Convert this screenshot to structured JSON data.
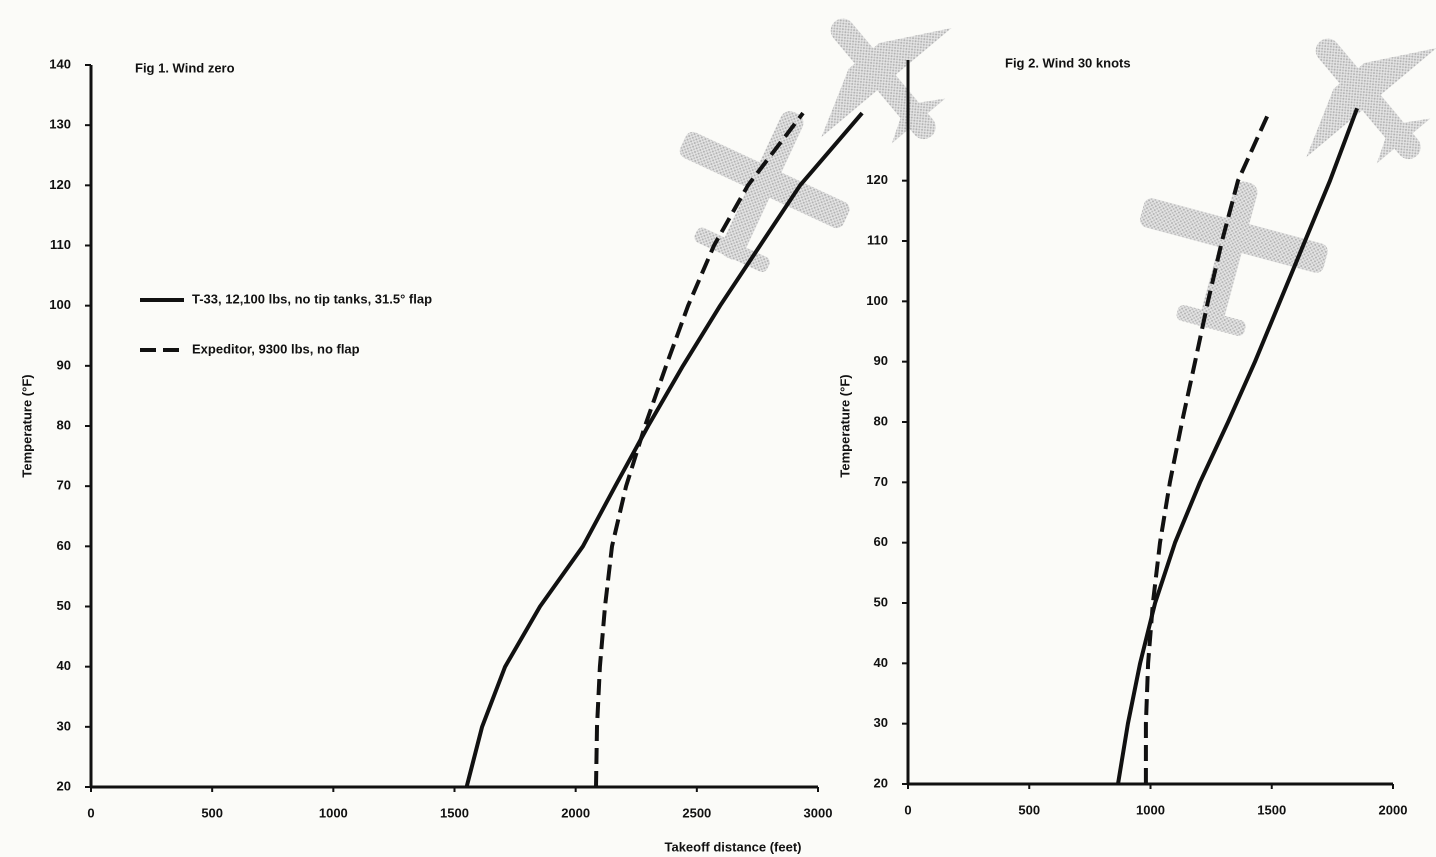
{
  "chart_data": [
    {
      "type": "line",
      "title": "Fig 1.  Wind zero",
      "x_label": "Takeoff distance (feet)",
      "y_label": "Temperature (°F)",
      "xlim": [
        0,
        3000
      ],
      "xticks": [
        0,
        500,
        1000,
        1500,
        2000,
        2500,
        3000
      ],
      "ylim": [
        20,
        140
      ],
      "yticks": [
        20,
        30,
        40,
        50,
        60,
        70,
        80,
        90,
        100,
        110,
        120,
        130,
        140
      ],
      "series": [
        {
          "name": "T-33, 12,100 lbs, no tip tanks, 31.5° flap",
          "color": "#111111",
          "style": "solid",
          "x": [
            1550,
            1614,
            1709,
            1853,
            2030,
            2163,
            2299,
            2443,
            2596,
            2761,
            2926,
            3182
          ],
          "values": [
            20,
            30,
            40,
            50,
            60,
            70,
            80,
            90,
            100,
            110,
            120,
            132
          ]
        },
        {
          "name": "Expeditor, 9300 lbs, no flap",
          "color": "#111111",
          "style": "dashed",
          "x": [
            2084,
            2088,
            2100,
            2121,
            2150,
            2208,
            2286,
            2373,
            2464,
            2571,
            2711,
            2938
          ],
          "values": [
            20,
            30,
            40,
            50,
            60,
            70,
            80,
            90,
            100,
            110,
            120,
            132
          ]
        }
      ]
    },
    {
      "type": "line",
      "title": "Fig 2.  Wind 30 knots",
      "y_label": "Temperature (°F)",
      "xlim": [
        0,
        2000
      ],
      "xticks": [
        0,
        500,
        1000,
        1500,
        2000
      ],
      "ylim": [
        20,
        140
      ],
      "yticks": [
        20,
        30,
        40,
        50,
        60,
        70,
        80,
        90,
        100,
        110,
        120
      ],
      "series": [
        {
          "color": "#111111",
          "style": "solid",
          "x": [
            866,
            907,
            957,
            1019,
            1101,
            1204,
            1320,
            1431,
            1534,
            1637,
            1740,
            1852
          ],
          "values": [
            20,
            30,
            40,
            50,
            60,
            70,
            80,
            90,
            100,
            110,
            120,
            132
          ]
        },
        {
          "color": "#111111",
          "style": "dashed",
          "x": [
            981,
            981,
            990,
            1010,
            1039,
            1080,
            1130,
            1184,
            1237,
            1295,
            1361,
            1485
          ],
          "values": [
            20,
            30,
            40,
            50,
            60,
            70,
            80,
            90,
            100,
            110,
            120,
            131
          ]
        }
      ]
    }
  ]
}
